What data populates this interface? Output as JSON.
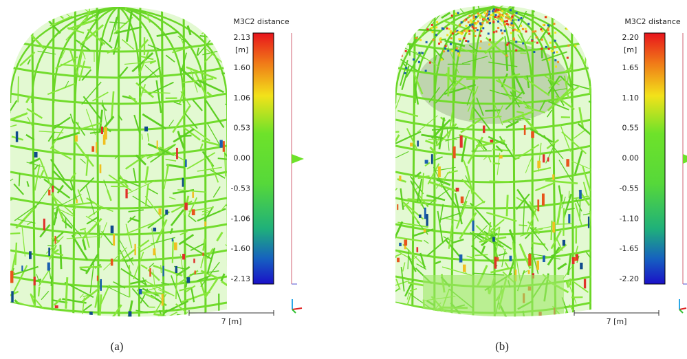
{
  "panels": [
    {
      "caption": "(a)",
      "colorbar": {
        "title": "M3C2 distance",
        "unit": "[m]",
        "ticks": [
          "2.13",
          "1.60",
          "1.06",
          "0.53",
          "0.00",
          "-0.53",
          "-1.06",
          "-1.60",
          "-2.13"
        ]
      },
      "scale_bar": "7 [m]"
    },
    {
      "caption": "(b)",
      "colorbar": {
        "title": "M3C2 distance",
        "unit": "[m]",
        "ticks": [
          "2.20",
          "1.65",
          "1.10",
          "0.55",
          "0.00",
          "-0.55",
          "-1.10",
          "-1.65",
          "-2.20"
        ]
      },
      "scale_bar": "7 [m]"
    }
  ]
}
